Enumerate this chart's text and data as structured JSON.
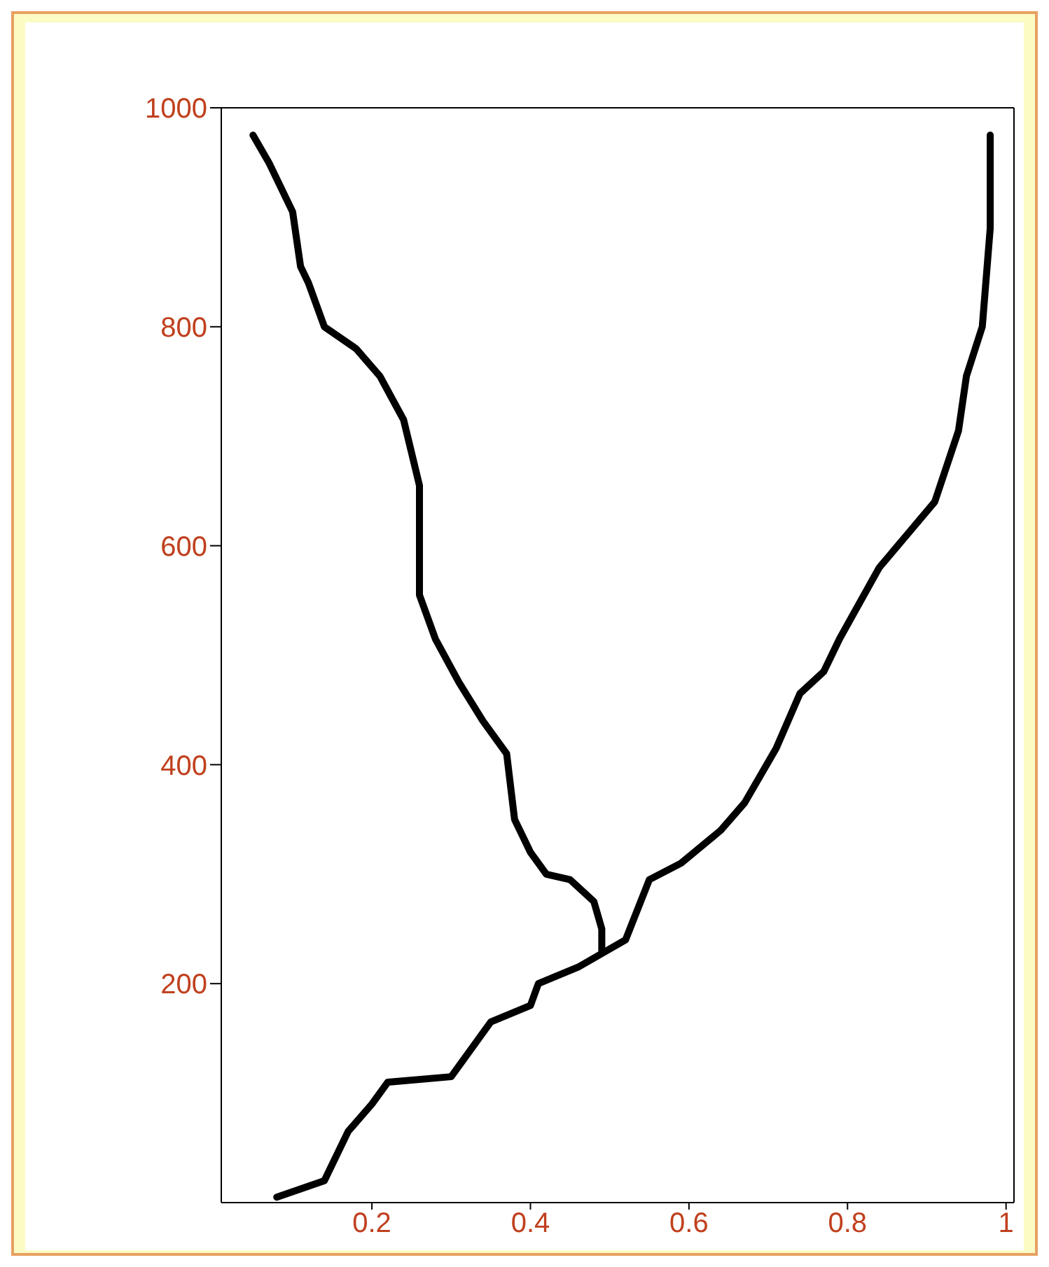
{
  "chart_data": {
    "type": "line",
    "xlim": [
      0.01,
      1.01
    ],
    "ylim": [
      0,
      1000
    ],
    "xticks": [
      0.2,
      0.4,
      0.6,
      0.8,
      1
    ],
    "yticks": [
      200,
      400,
      600,
      800,
      1000
    ],
    "grid": false,
    "series": [
      {
        "color": "#000000",
        "x": [
          0.05,
          0.07,
          0.1,
          0.11,
          0.12,
          0.14,
          0.18,
          0.21,
          0.24,
          0.26,
          0.26,
          0.28,
          0.31,
          0.34,
          0.37,
          0.38,
          0.4,
          0.42,
          0.45,
          0.48,
          0.49,
          0.49
        ],
        "values": [
          975,
          950,
          905,
          855,
          840,
          800,
          780,
          755,
          715,
          655,
          555,
          515,
          475,
          440,
          410,
          350,
          320,
          300,
          295,
          275,
          250,
          230
        ]
      },
      {
        "color": "#000000",
        "x": [
          0.08,
          0.14,
          0.17,
          0.2,
          0.22,
          0.3,
          0.35,
          0.4,
          0.41,
          0.46,
          0.52,
          0.55,
          0.59,
          0.64,
          0.67,
          0.71,
          0.74,
          0.77,
          0.79,
          0.84,
          0.91,
          0.94,
          0.95,
          0.97,
          0.98,
          0.98
        ],
        "values": [
          5,
          20,
          65,
          90,
          110,
          115,
          165,
          180,
          200,
          215,
          240,
          295,
          310,
          340,
          365,
          415,
          465,
          485,
          515,
          580,
          640,
          705,
          755,
          800,
          890,
          975
        ]
      }
    ]
  }
}
